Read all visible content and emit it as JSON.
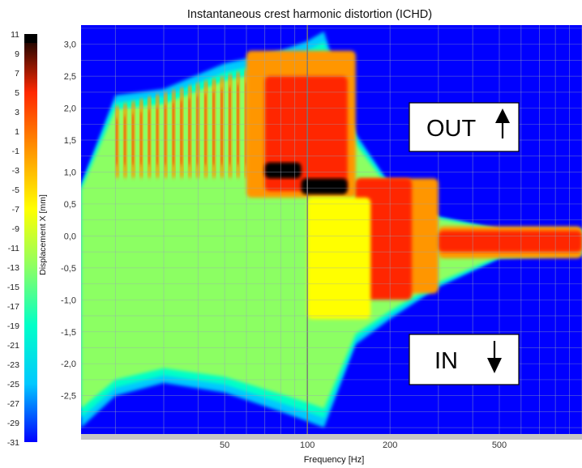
{
  "chart_data": {
    "type": "heatmap",
    "title": "Instantaneous crest harmonic distortion (ICHD)",
    "xlabel": "Frequency [Hz]",
    "ylabel": "Displacement X [mm]",
    "x_scale": "log",
    "xlim": [
      15,
      1000
    ],
    "x_ticks": [
      50,
      100,
      200,
      500
    ],
    "ylim": [
      -3.1,
      3.3
    ],
    "y_ticks": [
      -2.5,
      -2.0,
      -1.5,
      -1.0,
      -0.5,
      0.0,
      0.5,
      1.0,
      1.5,
      2.0,
      2.5,
      3.0
    ],
    "y_tick_labels": [
      "-2,5",
      "-2,0",
      "-1,5",
      "-1,0",
      "-0,5",
      "0,0",
      "0,5",
      "1,0",
      "1,5",
      "2,0",
      "2,5",
      "3,0"
    ],
    "colorbar": {
      "ticks": [
        11,
        9,
        7,
        5,
        3,
        1,
        -1,
        -3,
        -5,
        -7,
        -9,
        -11,
        -13,
        -15,
        -17,
        -19,
        -21,
        -23,
        -25,
        -27,
        -29,
        -31
      ],
      "range": [
        -31,
        11
      ],
      "colors": [
        "#0000ff",
        "#00c8ff",
        "#00ffc8",
        "#8cff64",
        "#ffff00",
        "#ff9600",
        "#ff2800",
        "#000000"
      ]
    },
    "background_level": -31,
    "grid": true,
    "annotations": [
      {
        "text": "OUT",
        "arrow": "up"
      },
      {
        "text": "IN",
        "arrow": "down"
      }
    ],
    "max_excursion_envelope": [
      {
        "f": 15,
        "xmax": 0.8,
        "xmin": -3.0
      },
      {
        "f": 20,
        "xmax": 2.2,
        "xmin": -2.5
      },
      {
        "f": 30,
        "xmax": 2.3,
        "xmin": -2.3
      },
      {
        "f": 50,
        "xmax": 2.7,
        "xmin": -2.45
      },
      {
        "f": 80,
        "xmax": 2.9,
        "xmin": -2.75
      },
      {
        "f": 100,
        "xmax": 3.05,
        "xmin": -2.9
      },
      {
        "f": 115,
        "xmax": 3.2,
        "xmin": -3.0
      },
      {
        "f": 150,
        "xmax": 1.6,
        "xmin": -1.7
      },
      {
        "f": 200,
        "xmax": 0.8,
        "xmin": -1.3
      },
      {
        "f": 300,
        "xmax": 0.3,
        "xmin": -0.8
      },
      {
        "f": 500,
        "xmax": 0.1,
        "xmin": -0.35
      },
      {
        "f": 1000,
        "xmax": 0.1,
        "xmin": -0.3
      }
    ],
    "distortion_bands": [
      {
        "f_from": 20,
        "f_to": 32,
        "level": "low",
        "note": "green, below 0 mm"
      },
      {
        "f_from": 20,
        "f_to": 60,
        "level": "high",
        "note": "orange/red stripes above 1 mm"
      },
      {
        "f_from": 60,
        "f_to": 150,
        "level": "very high",
        "note": "red/black region 0.6 - 3 mm"
      },
      {
        "f_from": 150,
        "f_to": 1000,
        "level": "high",
        "note": "red band around 0 mm"
      }
    ]
  }
}
